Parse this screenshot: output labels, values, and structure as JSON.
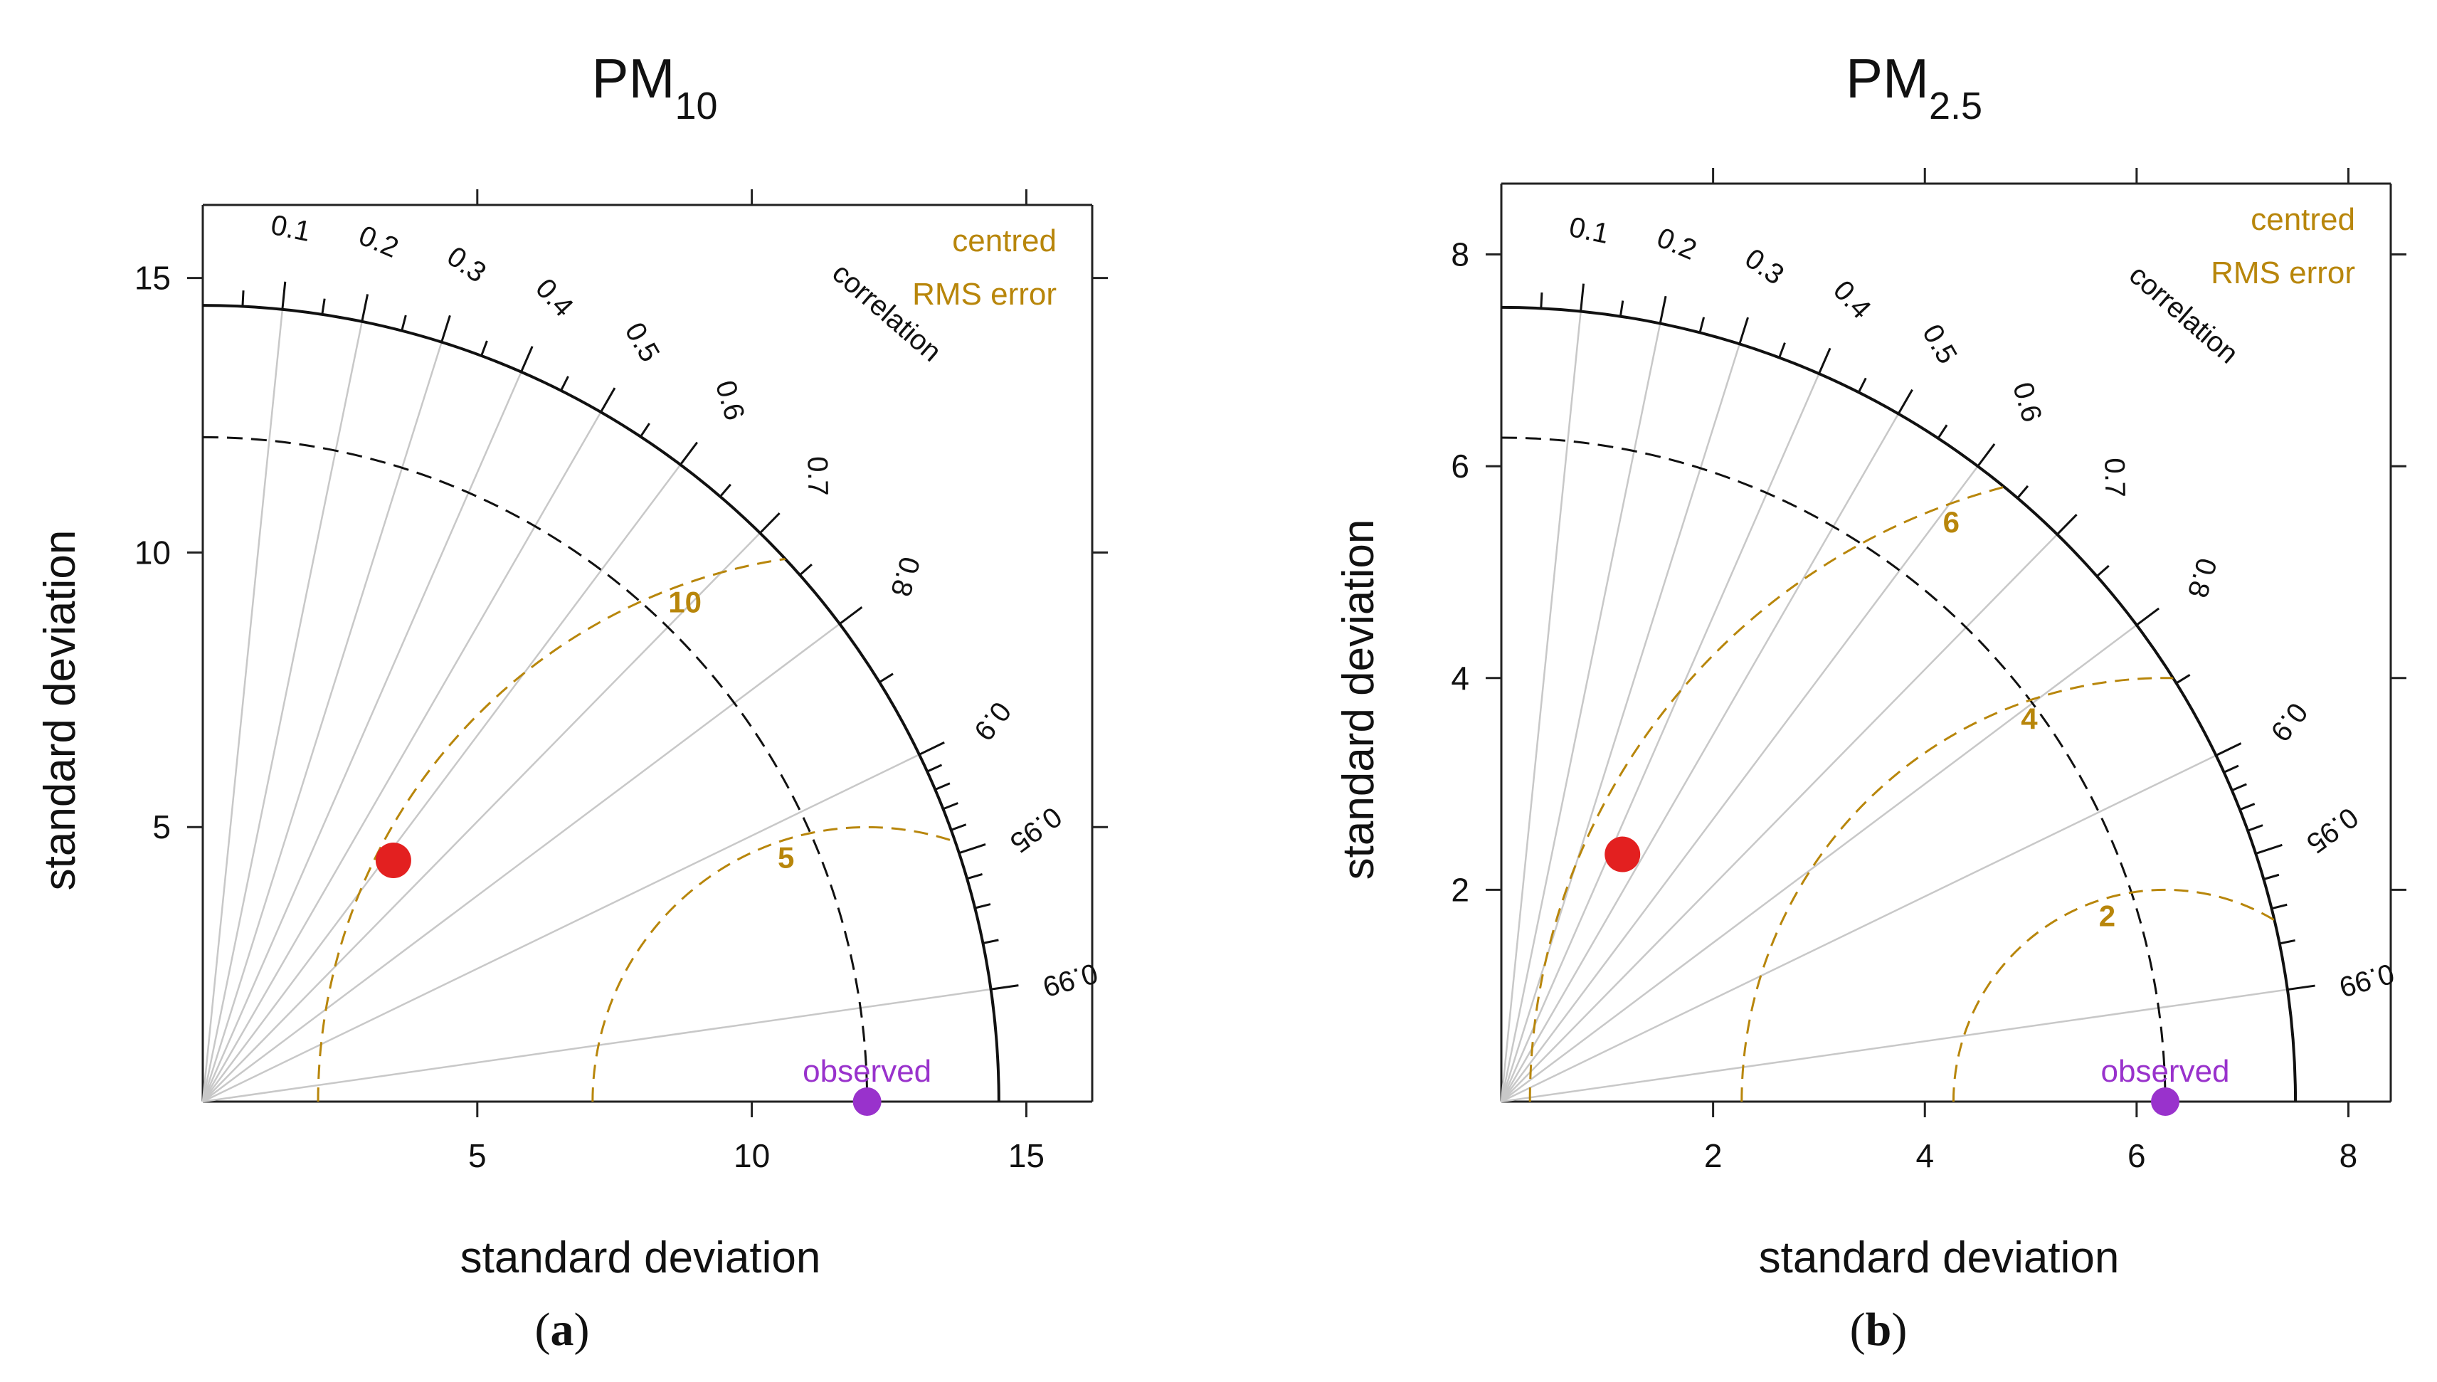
{
  "chart_data": [
    {
      "type": "taylor",
      "panel_label": "a",
      "title": "PM",
      "title_sub": "10",
      "xlabel": "standard deviation",
      "ylabel": "standard deviation",
      "max_sd": 14.5,
      "axis_max": 16.2,
      "x_ticks": [
        5,
        10,
        15
      ],
      "y_ticks": [
        5,
        10,
        15
      ],
      "correlation_label": "correlation",
      "correlation_ticks": [
        "0.1",
        "0.2",
        "0.3",
        "0.4",
        "0.5",
        "0.6",
        "0.7",
        "0.8",
        "0.9",
        "0.95",
        "0.99"
      ],
      "rms_legend": [
        "centred",
        "RMS error"
      ],
      "rms_contours": [
        5,
        10
      ],
      "ref_sd_arc": 12.1,
      "observed": {
        "label": "observed",
        "sd": 12.1
      },
      "model_point": {
        "sd": 5.6,
        "correlation": 0.62
      },
      "colors": {
        "rms": "#b8860b",
        "observed": "#9932cc",
        "model": "#e32020",
        "grid": "#c8c8c8"
      }
    },
    {
      "type": "taylor",
      "panel_label": "b",
      "title": "PM",
      "title_sub": "2.5",
      "xlabel": "standard deviation",
      "ylabel": "standard deviation",
      "max_sd": 7.5,
      "axis_max": 8.4,
      "x_ticks": [
        2,
        4,
        6,
        8
      ],
      "y_ticks": [
        2,
        4,
        6,
        8
      ],
      "correlation_label": "correlation",
      "correlation_ticks": [
        "0.1",
        "0.2",
        "0.3",
        "0.4",
        "0.5",
        "0.6",
        "0.7",
        "0.8",
        "0.9",
        "0.95",
        "0.99"
      ],
      "rms_legend": [
        "centred",
        "RMS error"
      ],
      "rms_contours": [
        2,
        4,
        6
      ],
      "ref_sd_arc": 6.27,
      "observed": {
        "label": "observed",
        "sd": 6.27
      },
      "model_point": {
        "sd": 2.6,
        "correlation": 0.44
      },
      "colors": {
        "rms": "#b8860b",
        "observed": "#9932cc",
        "model": "#e32020",
        "grid": "#c8c8c8"
      }
    }
  ]
}
